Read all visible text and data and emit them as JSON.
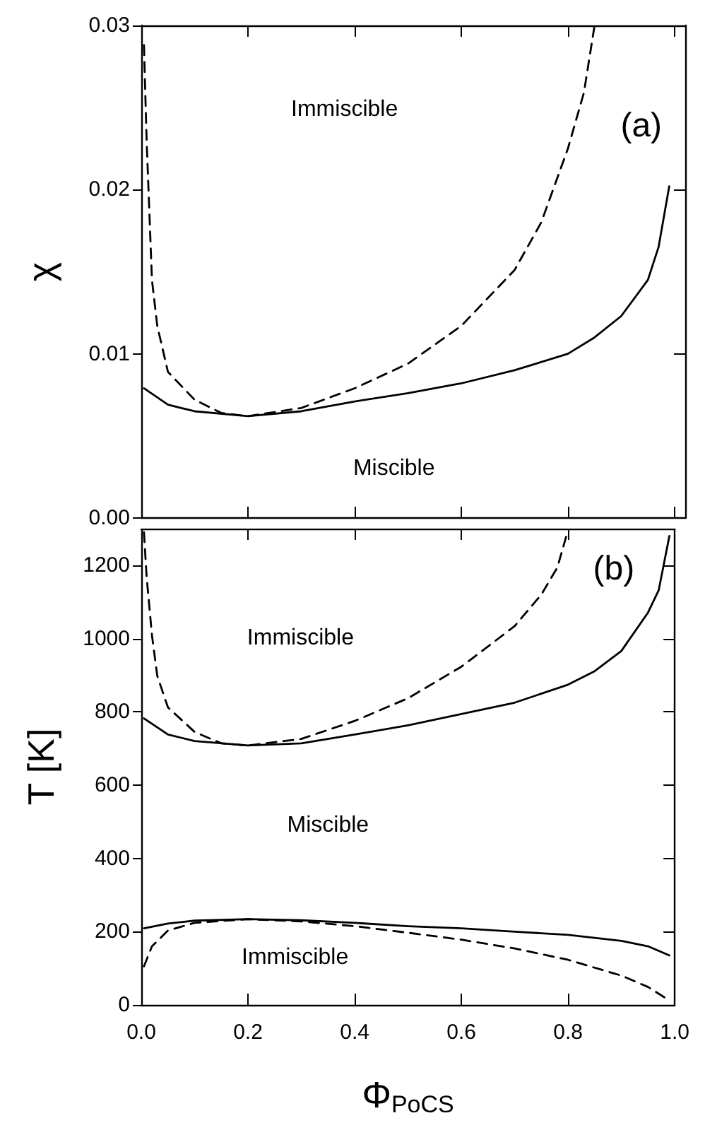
{
  "chart_data": [
    {
      "type": "line",
      "ylabel": "χ",
      "xlim": [
        0,
        1.02
      ],
      "xticks": [
        0,
        0.2,
        0.4,
        0.6,
        0.8,
        1
      ],
      "ylim": [
        0,
        0.03
      ],
      "yticks": [
        {
          "value": 0,
          "label": "0.00"
        },
        {
          "value": 0.01,
          "label": "0.01"
        },
        {
          "value": 0.02,
          "label": "0.02"
        },
        {
          "value": 0.03,
          "label": "0.03"
        }
      ],
      "tick_labels": "y",
      "grid": false,
      "marker": "none",
      "annotations": [
        "Immiscible",
        "(a)",
        "Miscible"
      ],
      "series": [
        {
          "color": "#000000",
          "line_style": "solid",
          "x": [
            0.005,
            0.05,
            0.1,
            0.2,
            0.3,
            0.4,
            0.5,
            0.6,
            0.7,
            0.8,
            0.85,
            0.9,
            0.95,
            0.97,
            0.99
          ],
          "values": [
            0.0079,
            0.0069,
            0.0065,
            0.0062,
            0.0065,
            0.0071,
            0.0076,
            0.0082,
            0.009,
            0.01,
            0.011,
            0.0123,
            0.0145,
            0.0165,
            0.0202
          ]
        },
        {
          "color": "#000000",
          "line_style": "dashed",
          "x": [
            0.005,
            0.01,
            0.02,
            0.03,
            0.05,
            0.1,
            0.15,
            0.2,
            0.3,
            0.4,
            0.5,
            0.6,
            0.7,
            0.75,
            0.8,
            0.83,
            0.85
          ],
          "values": [
            0.0288,
            0.023,
            0.0145,
            0.0117,
            0.0089,
            0.0072,
            0.0064,
            0.0062,
            0.0067,
            0.0079,
            0.0094,
            0.0117,
            0.0151,
            0.018,
            0.0225,
            0.0259,
            0.03
          ]
        }
      ]
    },
    {
      "type": "line",
      "xlabel": "Φ$_{PoCS}$",
      "ylabel": "T [K]",
      "xlim": [
        0,
        1
      ],
      "xticks": [
        {
          "value": 0,
          "label": "0.0"
        },
        {
          "value": 0.2,
          "label": "0.2"
        },
        {
          "value": 0.4,
          "label": "0.4"
        },
        {
          "value": 0.6,
          "label": "0.6"
        },
        {
          "value": 0.8,
          "label": "0.8"
        },
        {
          "value": 1,
          "label": "1.0"
        }
      ],
      "ylim": [
        0,
        1300
      ],
      "yticks": [
        0,
        200,
        400,
        600,
        800,
        1000,
        1200
      ],
      "grid": false,
      "marker": "none",
      "annotations": [
        "Immiscible",
        "(b)",
        "Miscible",
        "Immiscible"
      ],
      "series": [
        {
          "color": "#000000",
          "line_style": "solid",
          "x": [
            0.005,
            0.05,
            0.1,
            0.2,
            0.3,
            0.4,
            0.5,
            0.6,
            0.7,
            0.8,
            0.85,
            0.9,
            0.95,
            0.97,
            0.99
          ],
          "values": [
            782,
            738,
            720,
            708,
            714,
            738,
            763,
            794,
            825,
            874,
            911,
            966,
            1071,
            1132,
            1280
          ]
        },
        {
          "color": "#000000",
          "line_style": "dashed",
          "x": [
            0.005,
            0.01,
            0.02,
            0.03,
            0.05,
            0.1,
            0.15,
            0.2,
            0.3,
            0.4,
            0.5,
            0.6,
            0.7,
            0.75,
            0.78,
            0.8
          ],
          "values": [
            1290,
            1169,
            1009,
            898,
            812,
            745,
            714,
            708,
            726,
            775,
            837,
            923,
            1034,
            1120,
            1194,
            1296
          ]
        },
        {
          "color": "#000000",
          "line_style": "solid",
          "x": [
            0.005,
            0.05,
            0.1,
            0.2,
            0.3,
            0.4,
            0.5,
            0.6,
            0.7,
            0.8,
            0.9,
            0.95,
            0.99
          ],
          "values": [
            209,
            222,
            230,
            234,
            231,
            224,
            215,
            209,
            200,
            191,
            175,
            160,
            135
          ]
        },
        {
          "color": "#000000",
          "line_style": "dashed",
          "x": [
            0.005,
            0.02,
            0.05,
            0.1,
            0.2,
            0.3,
            0.4,
            0.5,
            0.6,
            0.7,
            0.8,
            0.9,
            0.95,
            0.99
          ],
          "values": [
            105,
            160,
            203,
            224,
            234,
            228,
            215,
            197,
            178,
            154,
            123,
            80,
            49,
            12
          ]
        }
      ]
    }
  ]
}
